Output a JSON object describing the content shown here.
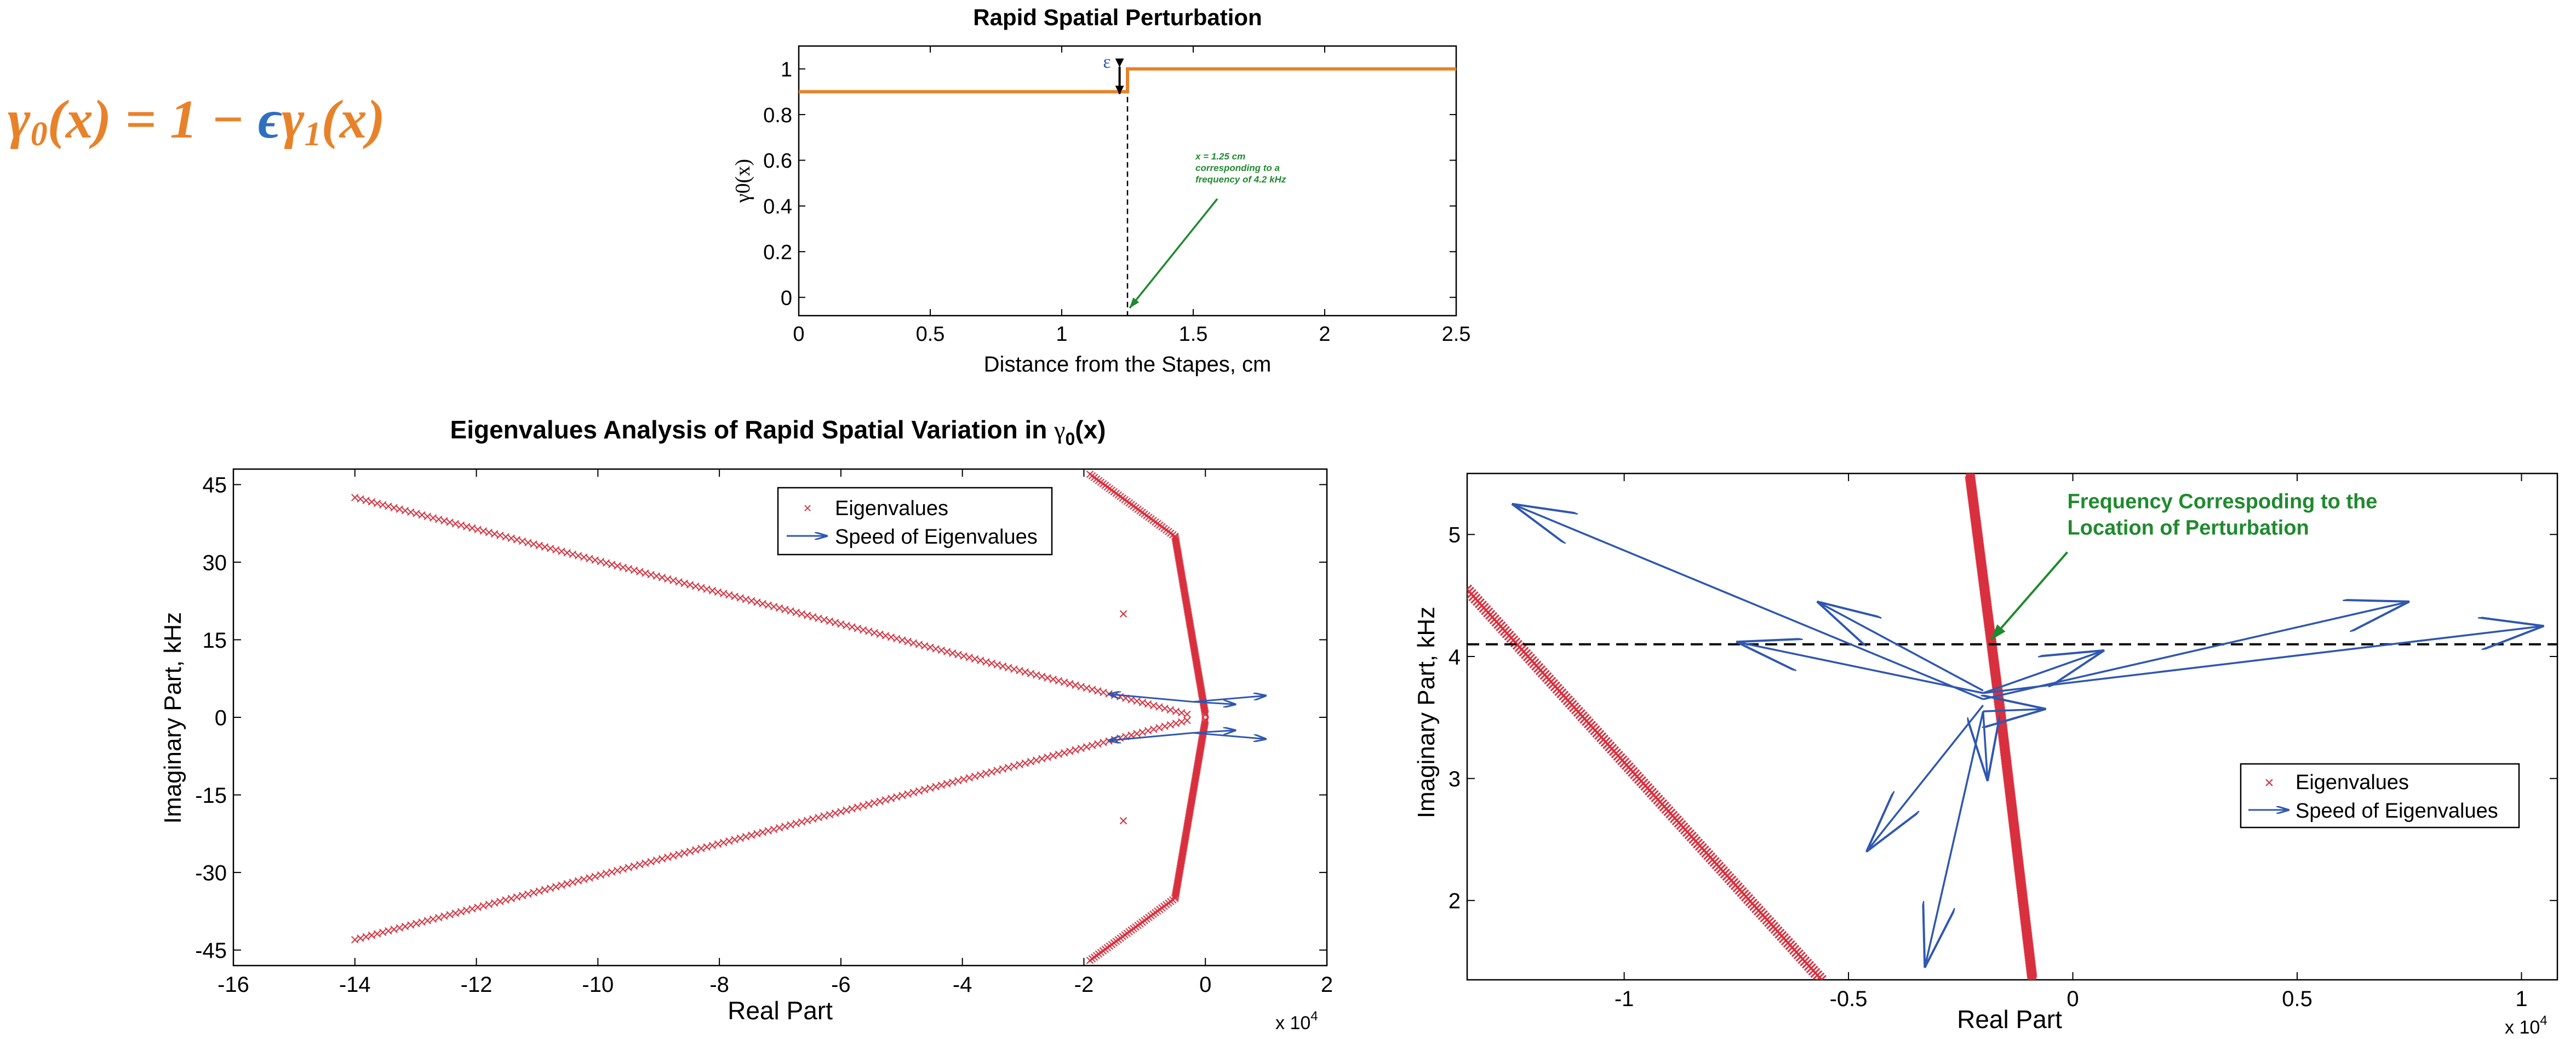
{
  "formula": {
    "lhs": "γ",
    "lhs_sub": "0",
    "lhs_arg": "(x) = 1 − ",
    "eps": "ϵ",
    "rhs": "γ",
    "rhs_sub": "1",
    "rhs_arg": "(x)"
  },
  "colors": {
    "orange": "#e8822a",
    "blue": "#2f57b0",
    "red": "#d8303e",
    "green": "#1f8a2e",
    "black": "#000000"
  },
  "chart_data": [
    {
      "id": "perturbation",
      "type": "line",
      "title": "Rapid Spatial Perturbation",
      "xlabel": "Distance from the Stapes, cm",
      "ylabel": "γ0(x)",
      "xlim": [
        0,
        2.5
      ],
      "ylim": [
        -0.08,
        1.1
      ],
      "xticks": [
        0,
        0.5,
        1,
        1.5,
        2,
        2.5
      ],
      "xtick_labels": [
        "0",
        "0.5",
        "1",
        "1.5",
        "2",
        "2.5"
      ],
      "yticks": [
        0,
        0.2,
        0.4,
        0.6,
        0.8,
        1
      ],
      "ytick_labels": [
        "0",
        "0.2",
        "0.4",
        "0.6",
        "0.8",
        "1"
      ],
      "series": [
        {
          "x": [
            0,
            1.25,
            1.25,
            2.5
          ],
          "y": [
            0.9,
            0.9,
            1.0,
            1.0
          ]
        }
      ],
      "epsilon_label": "ε",
      "epsilon_x": 1.22,
      "marker_x": 1.25,
      "annotation_lines": [
        "x = 1.25 cm",
        "corresponding to a",
        "frequency of 4.2 kHz"
      ],
      "annotation_xy": [
        1.25,
        -0.08
      ],
      "annotation_text_xy": [
        1.55,
        0.46
      ]
    },
    {
      "id": "eigen-full",
      "type": "scatter",
      "title": "Eigenvalues Analysis of Rapid Spatial Variation in ",
      "title_gamma": "γ",
      "title_sub": "0",
      "title_end": "(x)",
      "xlabel": "Real Part",
      "ylabel": "Imaginary Part, kHz",
      "x_multiplier": "x 10",
      "x_multiplier_exp": "4",
      "xlim": [
        -16,
        2
      ],
      "ylim": [
        -48,
        48
      ],
      "xticks": [
        -16,
        -14,
        -12,
        -10,
        -8,
        -6,
        -4,
        -2,
        0,
        2
      ],
      "xtick_labels": [
        "-16",
        "-14",
        "-12",
        "-10",
        "-8",
        "-6",
        "-4",
        "-2",
        "0",
        "2"
      ],
      "yticks": [
        -45,
        -30,
        -15,
        0,
        15,
        30,
        45
      ],
      "ytick_labels": [
        "-45",
        "-30",
        "-15",
        "0",
        "15",
        "30",
        "45"
      ],
      "legend": [
        "Eigenvalues",
        "Speed of Eigenvalues"
      ],
      "legend_position": "top-center",
      "eigen_branches": [
        {
          "from": [
            -14,
            42.5
          ],
          "to": [
            -0.3,
            0.6
          ],
          "count": 150
        },
        {
          "from": [
            -14,
            -43
          ],
          "to": [
            -0.3,
            -0.6
          ],
          "count": 150
        },
        {
          "from": [
            -1.9,
            47
          ],
          "to": [
            -0.5,
            35
          ],
          "count": 40
        },
        {
          "from": [
            -0.5,
            35
          ],
          "to": [
            0,
            0.5
          ],
          "count": 120
        },
        {
          "from": [
            -1.9,
            -47
          ],
          "to": [
            -0.5,
            -35
          ],
          "count": 40
        },
        {
          "from": [
            -0.5,
            -35
          ],
          "to": [
            0,
            -0.5
          ],
          "count": 120
        }
      ],
      "eigen_isolated": [
        [
          -1.35,
          20
        ],
        [
          -1.35,
          -20
        ]
      ],
      "speed_arrows": [
        {
          "from": [
            -0.2,
            3
          ],
          "to": [
            1.0,
            4.2
          ]
        },
        {
          "from": [
            -0.2,
            3
          ],
          "to": [
            -1.6,
            4.5
          ]
        },
        {
          "from": [
            -0.2,
            3
          ],
          "to": [
            0.5,
            2.5
          ]
        },
        {
          "from": [
            -0.2,
            -3
          ],
          "to": [
            1.0,
            -4.2
          ]
        },
        {
          "from": [
            -0.2,
            -3
          ],
          "to": [
            -1.6,
            -4.5
          ]
        },
        {
          "from": [
            -0.2,
            -3
          ],
          "to": [
            0.5,
            -2.5
          ]
        }
      ]
    },
    {
      "id": "eigen-zoom",
      "type": "scatter",
      "xlabel": "Real Part",
      "ylabel": "Imaginary Part, kHz",
      "x_multiplier": "x 10",
      "x_multiplier_exp": "4",
      "xlim": [
        -1.35,
        1.08
      ],
      "ylim": [
        1.35,
        5.5
      ],
      "xticks": [
        -1,
        -0.5,
        0,
        0.5,
        1
      ],
      "xtick_labels": [
        "-1",
        "-0.5",
        "0",
        "0.5",
        "1"
      ],
      "yticks": [
        2,
        3,
        4,
        5
      ],
      "ytick_labels": [
        "2",
        "3",
        "4",
        "5"
      ],
      "legend": [
        "Eigenvalues",
        "Speed of Eigenvalues"
      ],
      "legend_position": "right",
      "perturbation_level": 4.1,
      "annotation_lines": [
        "Frequency Correspoding to the",
        "Location of Perturbation"
      ],
      "annotation_xy": [
        -0.19,
        4.1
      ],
      "annotation_text_xy": [
        0.0,
        5.08
      ],
      "eigen_branches": [
        {
          "from": [
            -1.35,
            4.55
          ],
          "to": [
            -0.56,
            1.35
          ],
          "count": 170
        },
        {
          "from": [
            -0.23,
            5.5
          ],
          "to": [
            -0.16,
            3.5
          ],
          "count": 160
        },
        {
          "from": [
            -0.16,
            3.5
          ],
          "to": [
            -0.09,
            1.35
          ],
          "count": 170
        }
      ],
      "speed_arrows": [
        {
          "from": [
            -0.2,
            3.65
          ],
          "to": [
            -1.25,
            5.25
          ]
        },
        {
          "from": [
            -0.2,
            3.72
          ],
          "to": [
            -0.57,
            4.45
          ]
        },
        {
          "from": [
            -0.2,
            3.7
          ],
          "to": [
            -0.75,
            4.12
          ]
        },
        {
          "from": [
            -0.2,
            3.65
          ],
          "to": [
            0.75,
            4.45
          ]
        },
        {
          "from": [
            -0.2,
            3.7
          ],
          "to": [
            1.05,
            4.25
          ]
        },
        {
          "from": [
            -0.2,
            3.7
          ],
          "to": [
            0.07,
            4.05
          ]
        },
        {
          "from": [
            -0.2,
            3.6
          ],
          "to": [
            -0.46,
            2.4
          ]
        },
        {
          "from": [
            -0.2,
            3.55
          ],
          "to": [
            -0.33,
            1.45
          ]
        },
        {
          "from": [
            -0.2,
            3.55
          ],
          "to": [
            -0.19,
            2.98
          ]
        },
        {
          "from": [
            -0.2,
            3.55
          ],
          "to": [
            -0.06,
            3.57
          ]
        }
      ]
    }
  ]
}
